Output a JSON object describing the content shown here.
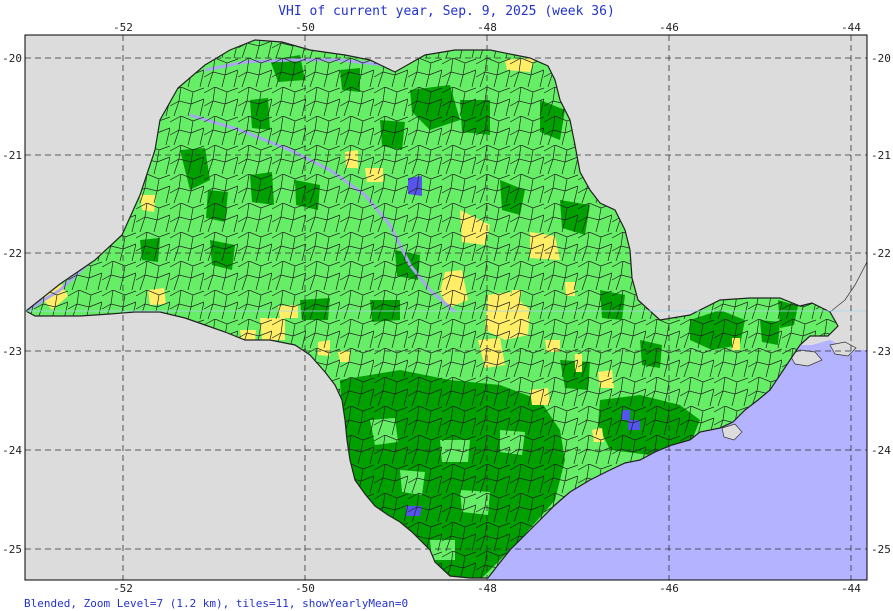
{
  "title": "VHI of current year, Sep. 9, 2025 (week 36)",
  "footer": "Blended, Zoom Level=7 (1.2 km), tiles=11, showYearlyMean=0",
  "axes": {
    "lon_ticks": [
      "-52",
      "-50",
      "-48",
      "-46",
      "-44"
    ],
    "lat_ticks": [
      "-20",
      "-21",
      "-22",
      "-23",
      "-24",
      "-25"
    ]
  },
  "colors": {
    "background": "#dcdcdc",
    "ocean": "#b3b3ff",
    "light_green": "#66ee66",
    "dark_green": "#00a000",
    "yellow": "#ffee66",
    "blue": "#5555ee",
    "border": "#222222",
    "grid": "#333333",
    "title": "#2233cc"
  }
}
